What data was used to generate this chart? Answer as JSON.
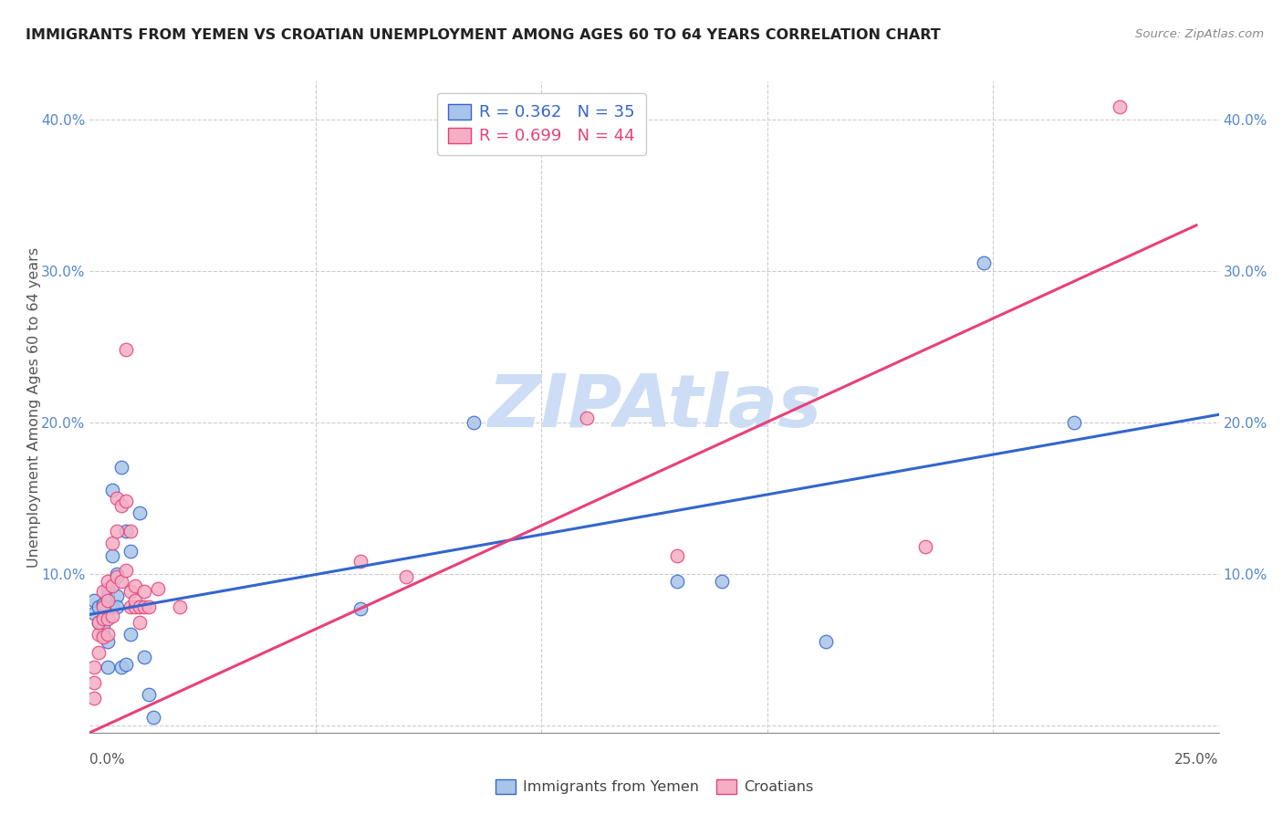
{
  "title": "IMMIGRANTS FROM YEMEN VS CROATIAN UNEMPLOYMENT AMONG AGES 60 TO 64 YEARS CORRELATION CHART",
  "source": "Source: ZipAtlas.com",
  "ylabel": "Unemployment Among Ages 60 to 64 years",
  "xmin": 0.0,
  "xmax": 0.25,
  "ymin": -0.005,
  "ymax": 0.425,
  "xticks": [
    0.0,
    0.05,
    0.1,
    0.15,
    0.2,
    0.25
  ],
  "xtick_labels": [
    "0.0%",
    "",
    "",
    "",
    "",
    "25.0%"
  ],
  "yticks": [
    0.0,
    0.1,
    0.2,
    0.3,
    0.4
  ],
  "ytick_labels": [
    "",
    "10.0%",
    "20.0%",
    "30.0%",
    "40.0%"
  ],
  "legend_blue_r": "R = 0.362",
  "legend_blue_n": "N = 35",
  "legend_pink_r": "R = 0.699",
  "legend_pink_n": "N = 44",
  "legend_label_blue": "Immigrants from Yemen",
  "legend_label_pink": "Croatians",
  "blue_color": "#a8c4e8",
  "pink_color": "#f4afc4",
  "trendline_blue": "#3366cc",
  "trendline_pink": "#e8407a",
  "watermark": "ZIPAtlas",
  "watermark_color": "#ccddf5",
  "blue_scatter": [
    [
      0.001,
      0.082
    ],
    [
      0.001,
      0.074
    ],
    [
      0.002,
      0.068
    ],
    [
      0.002,
      0.078
    ],
    [
      0.003,
      0.07
    ],
    [
      0.003,
      0.06
    ],
    [
      0.003,
      0.08
    ],
    [
      0.003,
      0.065
    ],
    [
      0.004,
      0.055
    ],
    [
      0.004,
      0.038
    ],
    [
      0.004,
      0.09
    ],
    [
      0.004,
      0.085
    ],
    [
      0.005,
      0.078
    ],
    [
      0.005,
      0.155
    ],
    [
      0.005,
      0.112
    ],
    [
      0.006,
      0.1
    ],
    [
      0.006,
      0.085
    ],
    [
      0.006,
      0.078
    ],
    [
      0.007,
      0.038
    ],
    [
      0.007,
      0.17
    ],
    [
      0.008,
      0.128
    ],
    [
      0.008,
      0.04
    ],
    [
      0.009,
      0.115
    ],
    [
      0.009,
      0.06
    ],
    [
      0.011,
      0.14
    ],
    [
      0.012,
      0.045
    ],
    [
      0.013,
      0.02
    ],
    [
      0.014,
      0.005
    ],
    [
      0.06,
      0.077
    ],
    [
      0.085,
      0.2
    ],
    [
      0.13,
      0.095
    ],
    [
      0.14,
      0.095
    ],
    [
      0.163,
      0.055
    ],
    [
      0.198,
      0.305
    ],
    [
      0.218,
      0.2
    ]
  ],
  "pink_scatter": [
    [
      0.001,
      0.018
    ],
    [
      0.001,
      0.028
    ],
    [
      0.001,
      0.038
    ],
    [
      0.002,
      0.048
    ],
    [
      0.002,
      0.06
    ],
    [
      0.002,
      0.068
    ],
    [
      0.003,
      0.058
    ],
    [
      0.003,
      0.07
    ],
    [
      0.003,
      0.078
    ],
    [
      0.003,
      0.088
    ],
    [
      0.004,
      0.06
    ],
    [
      0.004,
      0.07
    ],
    [
      0.004,
      0.082
    ],
    [
      0.004,
      0.095
    ],
    [
      0.005,
      0.072
    ],
    [
      0.005,
      0.092
    ],
    [
      0.005,
      0.12
    ],
    [
      0.006,
      0.098
    ],
    [
      0.006,
      0.128
    ],
    [
      0.006,
      0.15
    ],
    [
      0.007,
      0.095
    ],
    [
      0.007,
      0.145
    ],
    [
      0.008,
      0.102
    ],
    [
      0.008,
      0.148
    ],
    [
      0.008,
      0.248
    ],
    [
      0.009,
      0.078
    ],
    [
      0.009,
      0.088
    ],
    [
      0.009,
      0.128
    ],
    [
      0.01,
      0.078
    ],
    [
      0.01,
      0.082
    ],
    [
      0.01,
      0.092
    ],
    [
      0.011,
      0.068
    ],
    [
      0.011,
      0.078
    ],
    [
      0.012,
      0.078
    ],
    [
      0.012,
      0.088
    ],
    [
      0.013,
      0.078
    ],
    [
      0.015,
      0.09
    ],
    [
      0.02,
      0.078
    ],
    [
      0.06,
      0.108
    ],
    [
      0.07,
      0.098
    ],
    [
      0.11,
      0.203
    ],
    [
      0.13,
      0.112
    ],
    [
      0.185,
      0.118
    ],
    [
      0.228,
      0.408
    ]
  ],
  "blue_trendline_x": [
    0.0,
    0.25
  ],
  "blue_trendline_y": [
    0.073,
    0.205
  ],
  "pink_trendline_x": [
    0.0,
    0.245
  ],
  "pink_trendline_y": [
    -0.005,
    0.33
  ]
}
